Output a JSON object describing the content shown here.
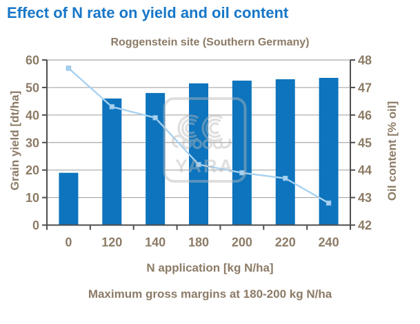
{
  "page": {
    "title": "Effect of N rate on yield and oil content",
    "caption": "Maximum gross margins at 180-200 kg N/ha"
  },
  "colors": {
    "title_blue": "#1777c8",
    "bar_blue": "#0d74bd",
    "line_blue": "#a9d2f0",
    "marker_edge_blue": "#8fc1e6",
    "label_brown": "#8c7b66",
    "grid_gray": "#a6a6a6",
    "axis_gray": "#4d4d4d",
    "watermark_gray": "#b9b9b9"
  },
  "watermark": {
    "text": "YARA",
    "icon": "yara-viking-ship-logo"
  },
  "chart_data": {
    "type": "bar",
    "subtype": "bar-line-combo-dual-axis",
    "title": "Roggenstein site (Southern Germany)",
    "categories": [
      "0",
      "120",
      "140",
      "180",
      "200",
      "220",
      "240"
    ],
    "series": [
      {
        "name": "Grain yield",
        "type": "bar",
        "axis": "left",
        "values": [
          19,
          46,
          48,
          51.5,
          52.5,
          53,
          53.5
        ]
      },
      {
        "name": "Oil content",
        "type": "line",
        "axis": "right",
        "values": [
          47.7,
          46.3,
          45.9,
          44.2,
          43.9,
          43.7,
          42.8
        ]
      }
    ],
    "xlabel": "N application [kg N/ha]",
    "left_axis": {
      "label": "Grain yield [dt/ha]",
      "min": 0,
      "max": 60,
      "ticks": [
        0,
        10,
        20,
        30,
        40,
        50,
        60
      ]
    },
    "right_axis": {
      "label": "Oil content [% oil]",
      "min": 42,
      "max": 48,
      "ticks": [
        42,
        43,
        44,
        45,
        46,
        47,
        48
      ]
    },
    "grid": true,
    "legend": "none"
  }
}
